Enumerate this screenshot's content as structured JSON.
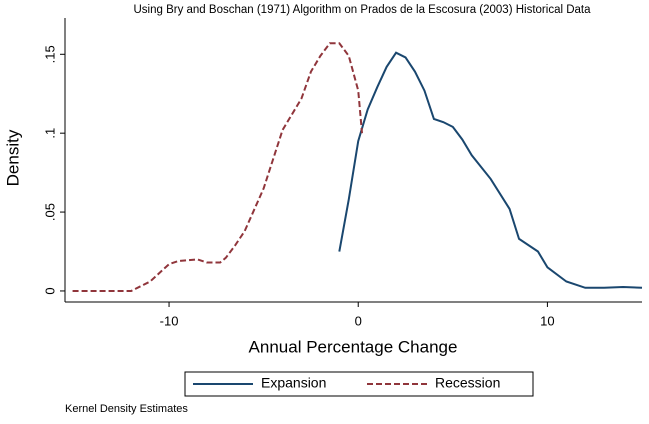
{
  "chart_data": {
    "type": "line",
    "title": "Using Bry and Boschan (1971) Algorithm on Prados de la Escosura (2003) Historical Data",
    "x_label": "Annual Percentage Change",
    "y_label": "Density",
    "note": "Kernel Density Estimates",
    "xlim": [
      -15.5,
      15
    ],
    "ylim": [
      -0.007,
      0.173
    ],
    "xticks": [
      -10,
      0,
      10
    ],
    "yticks": [
      0,
      {
        "value": 0.05,
        "label": ".05"
      },
      {
        "value": 0.1,
        "label": ".1"
      },
      {
        "value": 0.15,
        "label": ".15"
      }
    ],
    "legend": "bottom",
    "series": [
      {
        "name": "Expansion",
        "color": "#1a476f",
        "dash": "solid",
        "x": [
          -1,
          -0.5,
          0,
          0.5,
          1,
          1.5,
          2,
          2.5,
          3,
          3.5,
          4,
          4.5,
          5,
          5.5,
          6,
          7,
          8,
          8.5,
          9.5,
          10,
          11,
          12,
          13,
          14,
          15
        ],
        "values": [
          0.025,
          0.058,
          0.095,
          0.115,
          0.129,
          0.142,
          0.151,
          0.148,
          0.139,
          0.127,
          0.109,
          0.107,
          0.104,
          0.096,
          0.086,
          0.071,
          0.052,
          0.033,
          0.025,
          0.015,
          0.006,
          0.002,
          0.002,
          0.0025,
          0.002
        ]
      },
      {
        "name": "Recession",
        "color": "#90353b",
        "dash": "dashed",
        "x": [
          -15.1,
          -12,
          -11,
          -10,
          -9.5,
          -8.5,
          -8,
          -7.3,
          -7,
          -6.5,
          -6,
          -5,
          -4,
          -3,
          -2.5,
          -2,
          -1.5,
          -1,
          -0.5,
          0,
          0.2
        ],
        "values": [
          0,
          0,
          0.006,
          0.017,
          0.019,
          0.02,
          0.018,
          0.018,
          0.021,
          0.029,
          0.038,
          0.065,
          0.102,
          0.122,
          0.139,
          0.149,
          0.157,
          0.157,
          0.149,
          0.127,
          0.1
        ]
      }
    ]
  }
}
